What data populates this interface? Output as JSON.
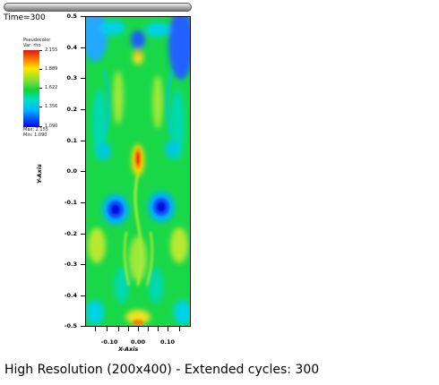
{
  "time_label": "Time=300",
  "legend": {
    "title_lines": [
      "Pseudocolor",
      "Var: rho"
    ],
    "labels": [
      "2.155",
      "1.889",
      "1.622",
      "1.356",
      "1.090"
    ],
    "stats_lines": [
      "Max: 2.155",
      "Min: 1.090"
    ]
  },
  "axes": {
    "x_title": "X-Axis",
    "y_title": "Y-Axis",
    "y_ticks": [
      "0.5",
      "0.4",
      "0.3",
      "0.2",
      "0.1",
      "0.0",
      "-0.1",
      "-0.2",
      "-0.3",
      "-0.4",
      "-0.5"
    ],
    "x_ticks": [
      "-0.10",
      "0.00",
      "0.10"
    ]
  },
  "caption": "High Resolution (200x400) - Extended cycles: 300",
  "colors": {
    "field_base": "#18d848",
    "min_color": "#0000e8",
    "max_color": "#e0140e"
  }
}
